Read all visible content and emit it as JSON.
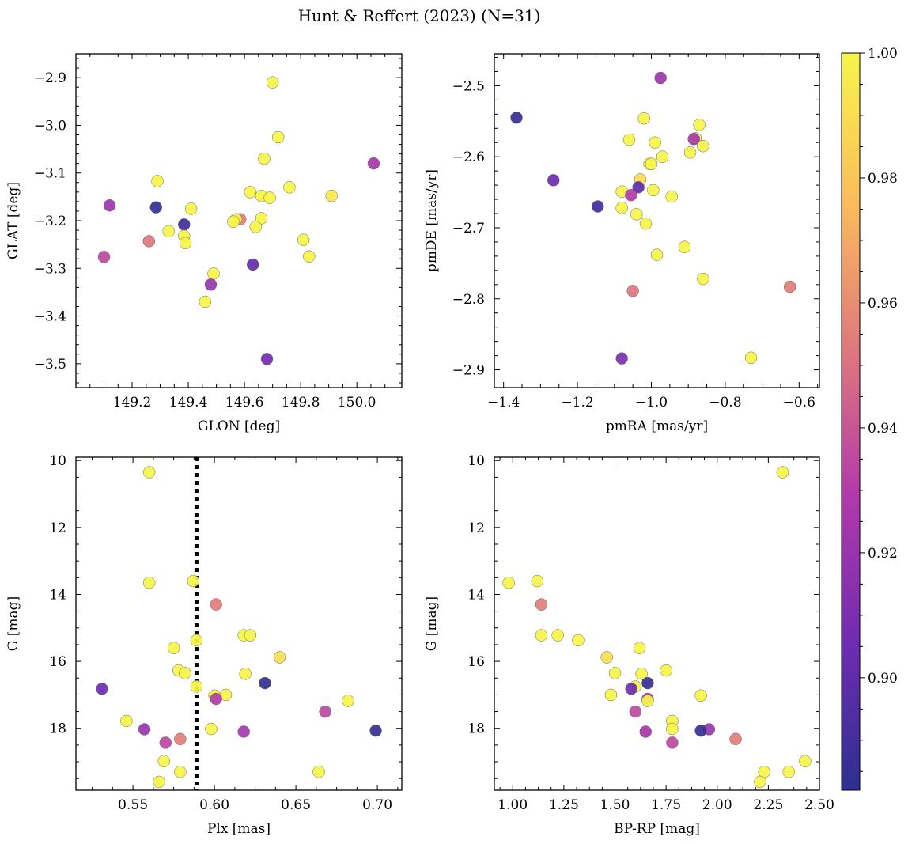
{
  "figure": {
    "title": "Hunt & Reffert (2023) (N=31)"
  },
  "colorbar": {
    "cmap": [
      "#2d2f8f",
      "#6f2cb2",
      "#b23aaa",
      "#e0787c",
      "#fbbd5b",
      "#f6f548"
    ],
    "range": [
      0.882,
      1.0
    ],
    "ticks": [
      0.9,
      0.92,
      0.94,
      0.96,
      0.98,
      1.0
    ],
    "tick_labels": [
      "0.90",
      "0.92",
      "0.94",
      "0.96",
      "0.98",
      "1.00"
    ]
  },
  "chart_data": [
    {
      "type": "scatter",
      "id": "glon-glat",
      "xlabel": "GLON [deg]",
      "ylabel": "GLAT [deg]",
      "xlim": [
        149.0,
        150.16
      ],
      "ylim": [
        -3.55,
        -2.85
      ],
      "y_inverted": false,
      "xticks": [
        149.2,
        149.4,
        149.6,
        149.8,
        150.0
      ],
      "xtick_labels": [
        "149.2",
        "149.4",
        "149.6",
        "149.8",
        "150.0"
      ],
      "yticks": [
        -2.9,
        -3.0,
        -3.1,
        -3.2,
        -3.3,
        -3.4,
        -3.5
      ],
      "ytick_labels": [
        "−2.9",
        "−3.0",
        "−3.1",
        "−3.2",
        "−3.3",
        "−3.4",
        "−3.5"
      ],
      "points": [
        {
          "x": 149.7,
          "y": -2.91,
          "c": 1.0
        },
        {
          "x": 149.72,
          "y": -3.025,
          "c": 1.0
        },
        {
          "x": 149.67,
          "y": -3.07,
          "c": 1.0
        },
        {
          "x": 150.06,
          "y": -3.08,
          "c": 0.925
        },
        {
          "x": 149.29,
          "y": -3.117,
          "c": 1.0
        },
        {
          "x": 149.76,
          "y": -3.13,
          "c": 1.0
        },
        {
          "x": 149.62,
          "y": -3.14,
          "c": 1.0
        },
        {
          "x": 149.66,
          "y": -3.148,
          "c": 1.0
        },
        {
          "x": 149.69,
          "y": -3.152,
          "c": 1.0
        },
        {
          "x": 149.91,
          "y": -3.148,
          "c": 0.995
        },
        {
          "x": 149.12,
          "y": -3.168,
          "c": 0.922
        },
        {
          "x": 149.285,
          "y": -3.172,
          "c": 0.885
        },
        {
          "x": 149.41,
          "y": -3.175,
          "c": 1.0
        },
        {
          "x": 149.585,
          "y": -3.197,
          "c": 0.955
        },
        {
          "x": 149.57,
          "y": -3.197,
          "c": 1.0
        },
        {
          "x": 149.66,
          "y": -3.195,
          "c": 1.0
        },
        {
          "x": 149.56,
          "y": -3.202,
          "c": 1.0
        },
        {
          "x": 149.385,
          "y": -3.208,
          "c": 0.888
        },
        {
          "x": 149.64,
          "y": -3.213,
          "c": 1.0
        },
        {
          "x": 149.33,
          "y": -3.222,
          "c": 1.0
        },
        {
          "x": 149.385,
          "y": -3.232,
          "c": 1.0
        },
        {
          "x": 149.81,
          "y": -3.24,
          "c": 1.0
        },
        {
          "x": 149.26,
          "y": -3.243,
          "c": 0.952
        },
        {
          "x": 149.39,
          "y": -3.247,
          "c": 1.0
        },
        {
          "x": 149.1,
          "y": -3.276,
          "c": 0.935
        },
        {
          "x": 149.83,
          "y": -3.275,
          "c": 1.0
        },
        {
          "x": 149.63,
          "y": -3.292,
          "c": 0.902
        },
        {
          "x": 149.49,
          "y": -3.311,
          "c": 1.0
        },
        {
          "x": 149.48,
          "y": -3.334,
          "c": 0.92
        },
        {
          "x": 149.46,
          "y": -3.37,
          "c": 1.0
        },
        {
          "x": 149.68,
          "y": -3.49,
          "c": 0.908
        }
      ]
    },
    {
      "type": "scatter",
      "id": "pmra-pmde",
      "xlabel": "pmRA [mas/yr]",
      "ylabel": "pmDE [mas/yr]",
      "xlim": [
        -1.425,
        -0.545
      ],
      "ylim": [
        -2.925,
        -2.455
      ],
      "y_inverted": false,
      "xticks": [
        -1.4,
        -1.2,
        -1.0,
        -0.8,
        -0.6
      ],
      "xtick_labels": [
        "−1.4",
        "−1.2",
        "−1.0",
        "−0.8",
        "−0.6"
      ],
      "yticks": [
        -2.5,
        -2.6,
        -2.7,
        -2.8,
        -2.9
      ],
      "ytick_labels": [
        "−2.5",
        "−2.6",
        "−2.7",
        "−2.8",
        "−2.9"
      ],
      "points": [
        {
          "x": -0.975,
          "y": -2.489,
          "c": 0.922
        },
        {
          "x": -1.365,
          "y": -2.545,
          "c": 0.885
        },
        {
          "x": -1.02,
          "y": -2.546,
          "c": 1.0
        },
        {
          "x": -0.87,
          "y": -2.555,
          "c": 1.0
        },
        {
          "x": -1.06,
          "y": -2.576,
          "c": 1.0
        },
        {
          "x": -0.88,
          "y": -2.574,
          "c": 0.995
        },
        {
          "x": -0.885,
          "y": -2.575,
          "c": 0.925
        },
        {
          "x": -0.99,
          "y": -2.58,
          "c": 1.0
        },
        {
          "x": -0.86,
          "y": -2.585,
          "c": 1.0
        },
        {
          "x": -0.895,
          "y": -2.594,
          "c": 1.0
        },
        {
          "x": -0.97,
          "y": -2.6,
          "c": 1.0
        },
        {
          "x": -1.005,
          "y": -2.61,
          "c": 1.0
        },
        {
          "x": -1.0,
          "y": -2.61,
          "c": 1.0
        },
        {
          "x": -1.03,
          "y": -2.632,
          "c": 0.99
        },
        {
          "x": -1.265,
          "y": -2.633,
          "c": 0.905
        },
        {
          "x": -1.035,
          "y": -2.643,
          "c": 0.9
        },
        {
          "x": -0.995,
          "y": -2.647,
          "c": 1.0
        },
        {
          "x": -1.08,
          "y": -2.649,
          "c": 1.0
        },
        {
          "x": -1.055,
          "y": -2.654,
          "c": 0.93
        },
        {
          "x": -0.945,
          "y": -2.656,
          "c": 1.0
        },
        {
          "x": -1.145,
          "y": -2.67,
          "c": 0.89
        },
        {
          "x": -1.08,
          "y": -2.672,
          "c": 1.0
        },
        {
          "x": -1.04,
          "y": -2.681,
          "c": 1.0
        },
        {
          "x": -1.015,
          "y": -2.694,
          "c": 1.0
        },
        {
          "x": -0.91,
          "y": -2.727,
          "c": 1.0
        },
        {
          "x": -0.985,
          "y": -2.738,
          "c": 1.0
        },
        {
          "x": -0.86,
          "y": -2.772,
          "c": 1.0
        },
        {
          "x": -0.625,
          "y": -2.783,
          "c": 0.955
        },
        {
          "x": -1.05,
          "y": -2.789,
          "c": 0.952
        },
        {
          "x": -1.08,
          "y": -2.884,
          "c": 0.91
        },
        {
          "x": -0.73,
          "y": -2.883,
          "c": 1.0
        }
      ]
    },
    {
      "type": "scatter",
      "id": "plx-g",
      "xlabel": "Plx [mas]",
      "ylabel": "G [mag]",
      "xlim": [
        0.515,
        0.715
      ],
      "ylim": [
        19.85,
        9.9
      ],
      "y_inverted": true,
      "vline": {
        "x": 0.589,
        "style": "dotted",
        "color": "#000000"
      },
      "xticks": [
        0.55,
        0.6,
        0.65,
        0.7
      ],
      "xtick_labels": [
        "0.55",
        "0.60",
        "0.65",
        "0.70"
      ],
      "yticks": [
        10,
        12,
        14,
        16,
        18
      ],
      "ytick_labels": [
        "10",
        "12",
        "14",
        "16",
        "18"
      ],
      "points": [
        {
          "x": 0.56,
          "y": 10.35,
          "c": 1.0
        },
        {
          "x": 0.587,
          "y": 13.6,
          "c": 1.0
        },
        {
          "x": 0.56,
          "y": 13.65,
          "c": 1.0
        },
        {
          "x": 0.601,
          "y": 14.3,
          "c": 0.955
        },
        {
          "x": 0.589,
          "y": 15.37,
          "c": 1.0
        },
        {
          "x": 0.618,
          "y": 15.22,
          "c": 1.0
        },
        {
          "x": 0.622,
          "y": 15.22,
          "c": 1.0
        },
        {
          "x": 0.575,
          "y": 15.6,
          "c": 1.0
        },
        {
          "x": 0.64,
          "y": 15.88,
          "c": 0.99
        },
        {
          "x": 0.578,
          "y": 16.27,
          "c": 1.0
        },
        {
          "x": 0.582,
          "y": 16.35,
          "c": 1.0
        },
        {
          "x": 0.619,
          "y": 16.37,
          "c": 1.0
        },
        {
          "x": 0.631,
          "y": 16.65,
          "c": 0.885
        },
        {
          "x": 0.589,
          "y": 16.75,
          "c": 1.0
        },
        {
          "x": 0.531,
          "y": 16.82,
          "c": 0.905
        },
        {
          "x": 0.607,
          "y": 17.0,
          "c": 1.0
        },
        {
          "x": 0.6,
          "y": 17.02,
          "c": 1.0
        },
        {
          "x": 0.601,
          "y": 17.12,
          "c": 0.93
        },
        {
          "x": 0.682,
          "y": 17.18,
          "c": 1.0
        },
        {
          "x": 0.668,
          "y": 17.5,
          "c": 0.935
        },
        {
          "x": 0.546,
          "y": 17.78,
          "c": 1.0
        },
        {
          "x": 0.557,
          "y": 18.03,
          "c": 0.92
        },
        {
          "x": 0.598,
          "y": 18.02,
          "c": 1.0
        },
        {
          "x": 0.699,
          "y": 18.07,
          "c": 0.885
        },
        {
          "x": 0.618,
          "y": 18.1,
          "c": 0.925
        },
        {
          "x": 0.579,
          "y": 18.32,
          "c": 0.955
        },
        {
          "x": 0.57,
          "y": 18.43,
          "c": 0.935
        },
        {
          "x": 0.569,
          "y": 18.98,
          "c": 1.0
        },
        {
          "x": 0.579,
          "y": 19.3,
          "c": 1.0
        },
        {
          "x": 0.664,
          "y": 19.3,
          "c": 1.0
        },
        {
          "x": 0.566,
          "y": 19.6,
          "c": 1.0
        }
      ]
    },
    {
      "type": "scatter",
      "id": "bprp-g",
      "xlabel": "BP-RP [mag]",
      "ylabel": "G [mag]",
      "xlim": [
        0.91,
        2.5
      ],
      "ylim": [
        19.85,
        9.9
      ],
      "y_inverted": true,
      "xticks": [
        1.0,
        1.25,
        1.5,
        1.75,
        2.0,
        2.25,
        2.5
      ],
      "xtick_labels": [
        "1.00",
        "1.25",
        "1.50",
        "1.75",
        "2.00",
        "2.25",
        "2.50"
      ],
      "yticks": [
        10,
        12,
        14,
        16,
        18
      ],
      "ytick_labels": [
        "10",
        "12",
        "14",
        "16",
        "18"
      ],
      "points": [
        {
          "x": 2.32,
          "y": 10.35,
          "c": 1.0
        },
        {
          "x": 0.98,
          "y": 13.65,
          "c": 1.0
        },
        {
          "x": 1.12,
          "y": 13.6,
          "c": 1.0
        },
        {
          "x": 1.14,
          "y": 14.3,
          "c": 0.955
        },
        {
          "x": 1.14,
          "y": 15.22,
          "c": 1.0
        },
        {
          "x": 1.22,
          "y": 15.22,
          "c": 1.0
        },
        {
          "x": 1.32,
          "y": 15.37,
          "c": 1.0
        },
        {
          "x": 1.62,
          "y": 15.6,
          "c": 1.0
        },
        {
          "x": 1.46,
          "y": 15.88,
          "c": 0.99
        },
        {
          "x": 1.75,
          "y": 16.27,
          "c": 1.0
        },
        {
          "x": 1.5,
          "y": 16.35,
          "c": 1.0
        },
        {
          "x": 1.63,
          "y": 16.37,
          "c": 1.0
        },
        {
          "x": 1.66,
          "y": 16.65,
          "c": 0.885
        },
        {
          "x": 1.6,
          "y": 16.75,
          "c": 1.0
        },
        {
          "x": 1.58,
          "y": 16.82,
          "c": 0.905
        },
        {
          "x": 1.48,
          "y": 17.0,
          "c": 1.0
        },
        {
          "x": 1.92,
          "y": 17.02,
          "c": 1.0
        },
        {
          "x": 1.66,
          "y": 17.12,
          "c": 0.93
        },
        {
          "x": 1.66,
          "y": 17.18,
          "c": 1.0
        },
        {
          "x": 1.6,
          "y": 17.5,
          "c": 0.935
        },
        {
          "x": 1.78,
          "y": 17.78,
          "c": 1.0
        },
        {
          "x": 1.96,
          "y": 18.03,
          "c": 0.92
        },
        {
          "x": 1.78,
          "y": 18.02,
          "c": 1.0
        },
        {
          "x": 1.92,
          "y": 18.07,
          "c": 0.885
        },
        {
          "x": 1.65,
          "y": 18.1,
          "c": 0.925
        },
        {
          "x": 2.09,
          "y": 18.32,
          "c": 0.955
        },
        {
          "x": 1.78,
          "y": 18.43,
          "c": 0.935
        },
        {
          "x": 2.43,
          "y": 18.98,
          "c": 1.0
        },
        {
          "x": 2.23,
          "y": 19.3,
          "c": 1.0
        },
        {
          "x": 2.35,
          "y": 19.3,
          "c": 1.0
        },
        {
          "x": 2.21,
          "y": 19.6,
          "c": 1.0
        }
      ]
    }
  ]
}
